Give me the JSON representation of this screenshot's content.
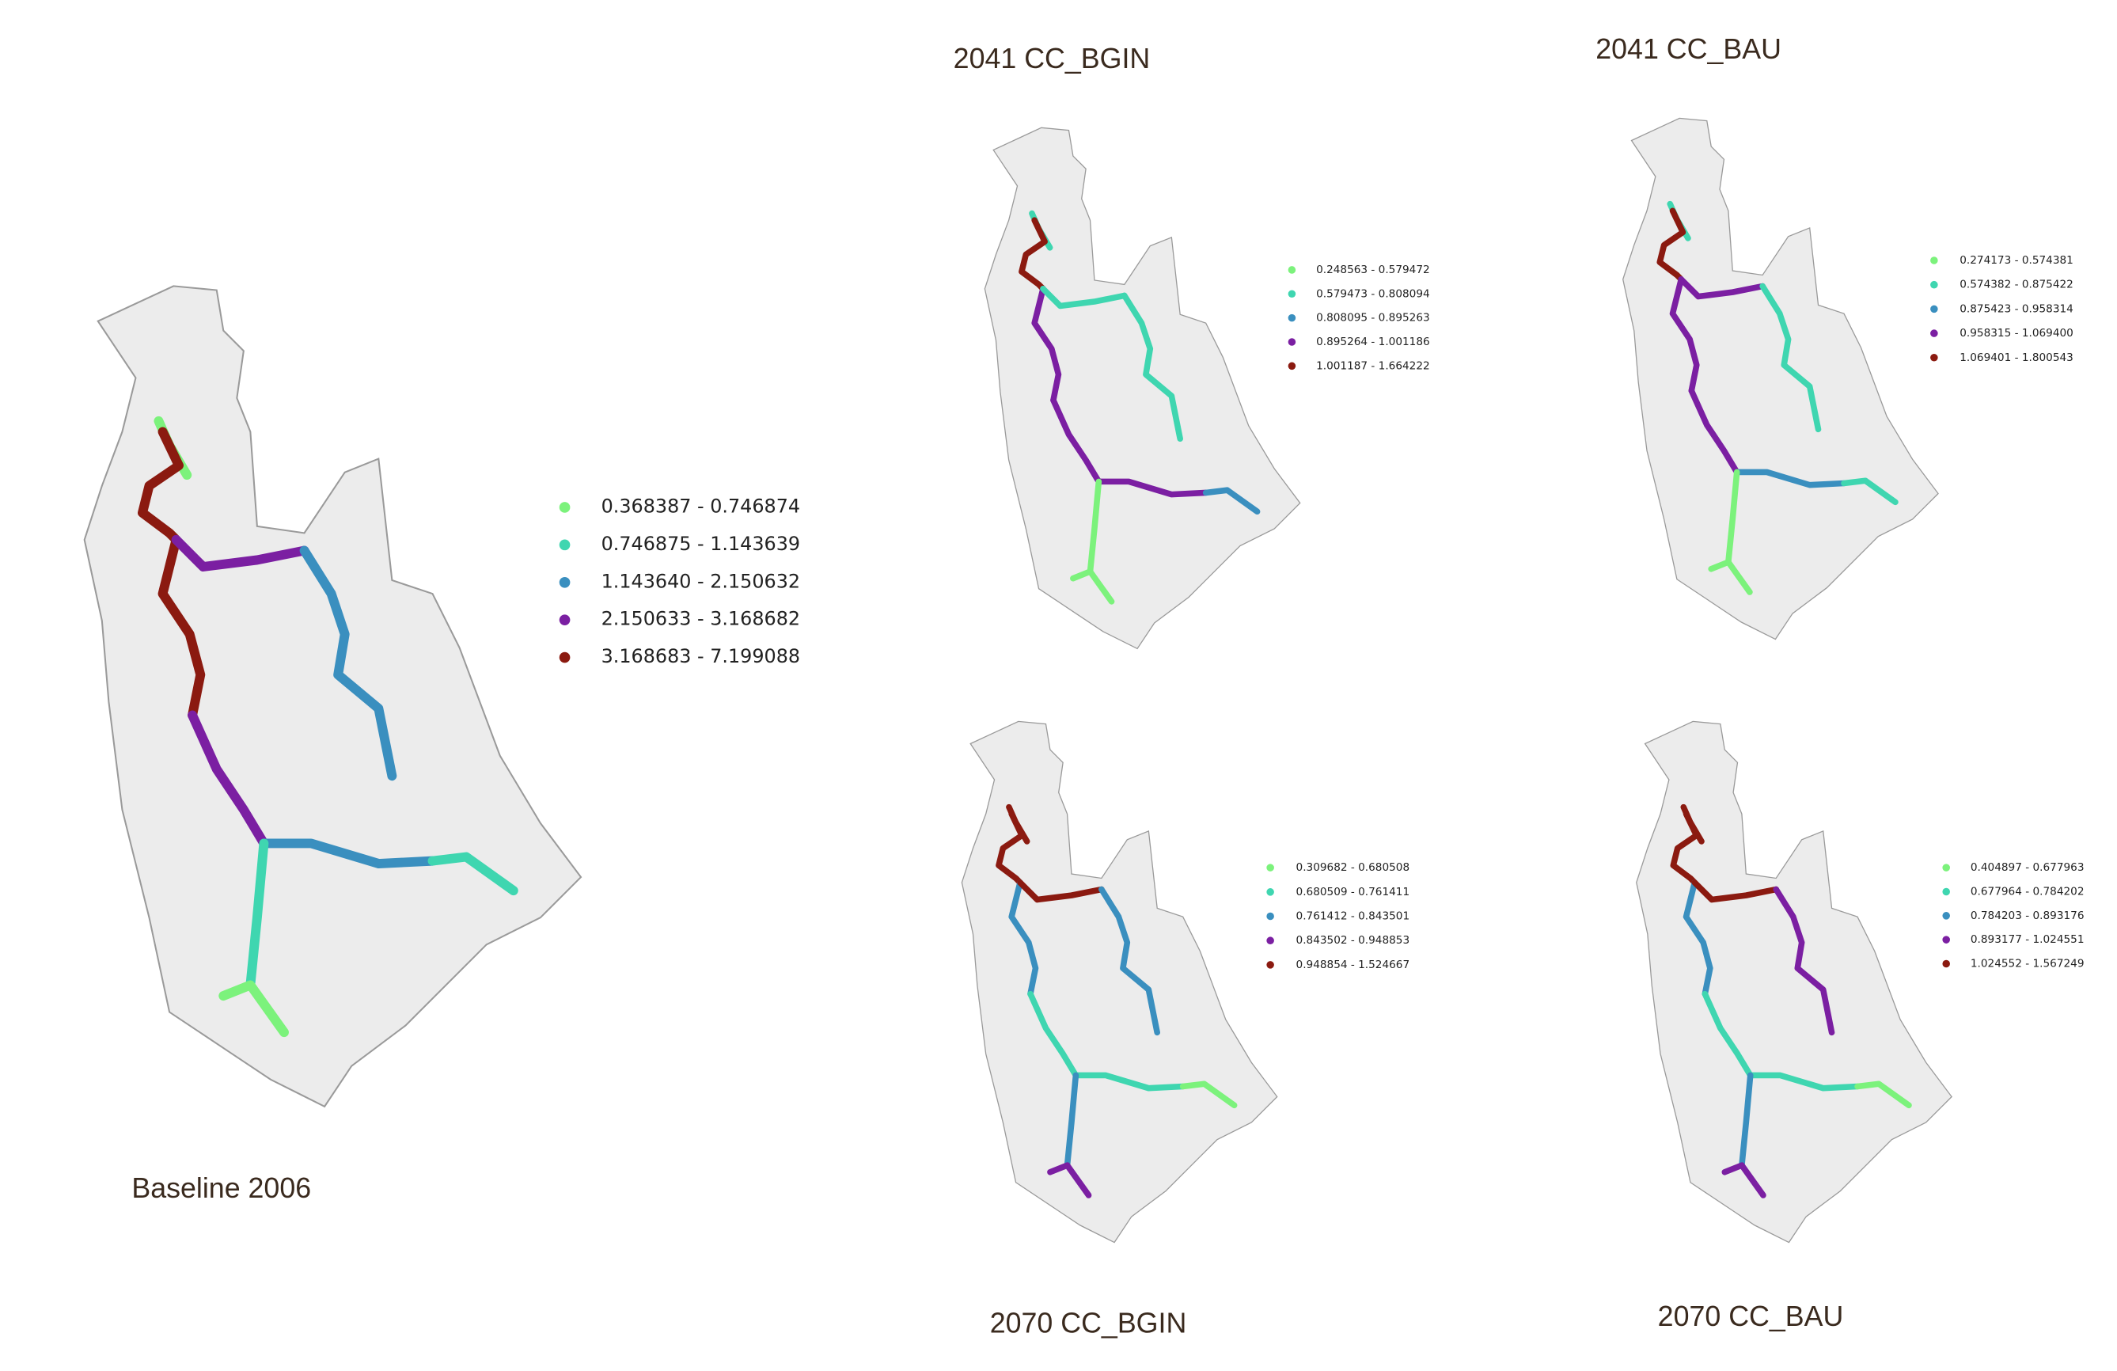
{
  "panels": [
    {
      "title": "Baseline 2006",
      "legend": [
        {
          "label": "0.368387 - 0.746874",
          "color": "#7cf27c"
        },
        {
          "label": "0.746875 - 1.143639",
          "color": "#3fd6b0"
        },
        {
          "label": "1.143640 - 2.150632",
          "color": "#3a8fbf"
        },
        {
          "label": "2.150633 - 3.168682",
          "color": "#7b1fa2"
        },
        {
          "label": "3.168683 - 7.199088",
          "color": "#8b1a10"
        }
      ]
    },
    {
      "title": "2041 CC_BGIN",
      "legend": [
        {
          "label": "0.248563 - 0.579472",
          "color": "#7cf27c"
        },
        {
          "label": "0.579473 - 0.808094",
          "color": "#3fd6b0"
        },
        {
          "label": "0.808095 - 0.895263",
          "color": "#3a8fbf"
        },
        {
          "label": "0.895264 - 1.001186",
          "color": "#7b1fa2"
        },
        {
          "label": "1.001187 - 1.664222",
          "color": "#8b1a10"
        }
      ]
    },
    {
      "title": "2041 CC_BAU",
      "legend": [
        {
          "label": "0.274173 - 0.574381",
          "color": "#7cf27c"
        },
        {
          "label": "0.574382 - 0.875422",
          "color": "#3fd6b0"
        },
        {
          "label": "0.875423 - 0.958314",
          "color": "#3a8fbf"
        },
        {
          "label": "0.958315 - 1.069400",
          "color": "#7b1fa2"
        },
        {
          "label": "1.069401 - 1.800543",
          "color": "#8b1a10"
        }
      ]
    },
    {
      "title": "2070 CC_BGIN",
      "legend": [
        {
          "label": "0.309682 - 0.680508",
          "color": "#7cf27c"
        },
        {
          "label": "0.680509 - 0.761411",
          "color": "#3fd6b0"
        },
        {
          "label": "0.761412 - 0.843501",
          "color": "#3a8fbf"
        },
        {
          "label": "0.843502 - 0.948853",
          "color": "#7b1fa2"
        },
        {
          "label": "0.948854 - 1.524667",
          "color": "#8b1a10"
        }
      ]
    },
    {
      "title": "2070 CC_BAU",
      "legend": [
        {
          "label": "0.404897 - 0.677963",
          "color": "#7cf27c"
        },
        {
          "label": "0.677964 - 0.784202",
          "color": "#3fd6b0"
        },
        {
          "label": "0.784203 - 0.893176",
          "color": "#3a8fbf"
        },
        {
          "label": "0.893177 - 1.024551",
          "color": "#7b1fa2"
        },
        {
          "label": "1.024552 - 1.567249",
          "color": "#8b1a10"
        }
      ]
    }
  ]
}
